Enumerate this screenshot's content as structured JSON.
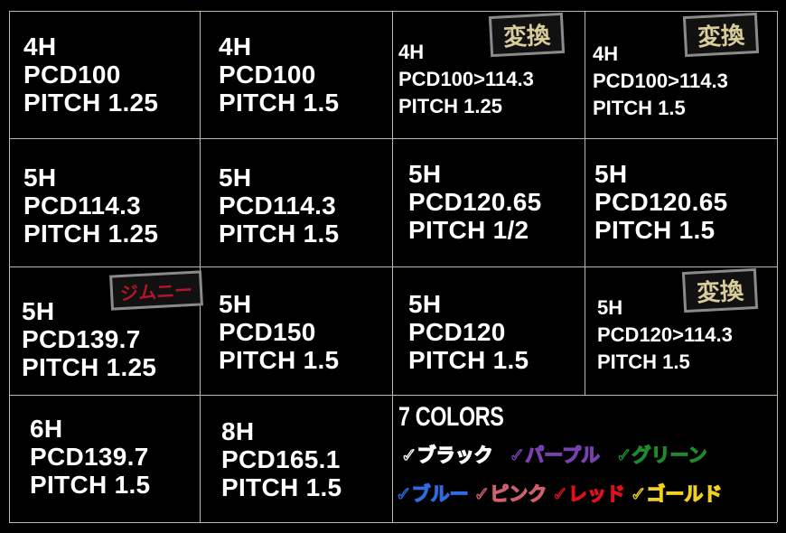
{
  "cells": [
    {
      "lines": [
        "4H",
        "PCD100",
        "PITCH 1.25"
      ]
    },
    {
      "lines": [
        "4H",
        "PCD100",
        "PITCH 1.5"
      ]
    },
    {
      "lines": [
        "4H",
        "PCD100>114.3",
        "PITCH 1.25"
      ],
      "badge": "変換"
    },
    {
      "lines": [
        "4H",
        "PCD100>114.3",
        "PITCH 1.5"
      ],
      "badge": "変換"
    },
    {
      "lines": [
        "5H",
        "PCD114.3",
        "PITCH 1.25"
      ]
    },
    {
      "lines": [
        "5H",
        "PCD114.3",
        "PITCH 1.5"
      ]
    },
    {
      "lines": [
        "5H",
        "PCD120.65",
        "PITCH 1/2"
      ]
    },
    {
      "lines": [
        "5H",
        "PCD120.65",
        "PITCH 1.5"
      ]
    },
    {
      "lines": [
        "5H",
        "PCD139.7",
        "PITCH 1.25"
      ],
      "badge": "ジムニー"
    },
    {
      "lines": [
        "5H",
        "PCD150",
        "PITCH 1.5"
      ]
    },
    {
      "lines": [
        "5H",
        "PCD120",
        "PITCH 1.5"
      ]
    },
    {
      "lines": [
        "5H",
        "PCD120>114.3",
        "PITCH 1.5"
      ],
      "badge": "変換"
    },
    {
      "lines": [
        "6H",
        "PCD139.7",
        "PITCH 1.5"
      ]
    },
    {
      "lines": [
        "8H",
        "PCD165.1",
        "PITCH 1.5"
      ]
    }
  ],
  "colors": {
    "title": "7 COLORS",
    "items": [
      {
        "label": "✓ブラック",
        "color": "#ffffff"
      },
      {
        "label": "✓パープル",
        "color": "#7a3fb0"
      },
      {
        "label": "✓グリーン",
        "color": "#1f8a2a"
      },
      {
        "label": "✓ブルー",
        "color": "#2f6ae0"
      },
      {
        "label": "✓ピンク",
        "color": "#d0606e"
      },
      {
        "label": "✓レッド",
        "color": "#e0101a"
      },
      {
        "label": "✓ゴールド",
        "color": "#f0d020"
      }
    ]
  }
}
